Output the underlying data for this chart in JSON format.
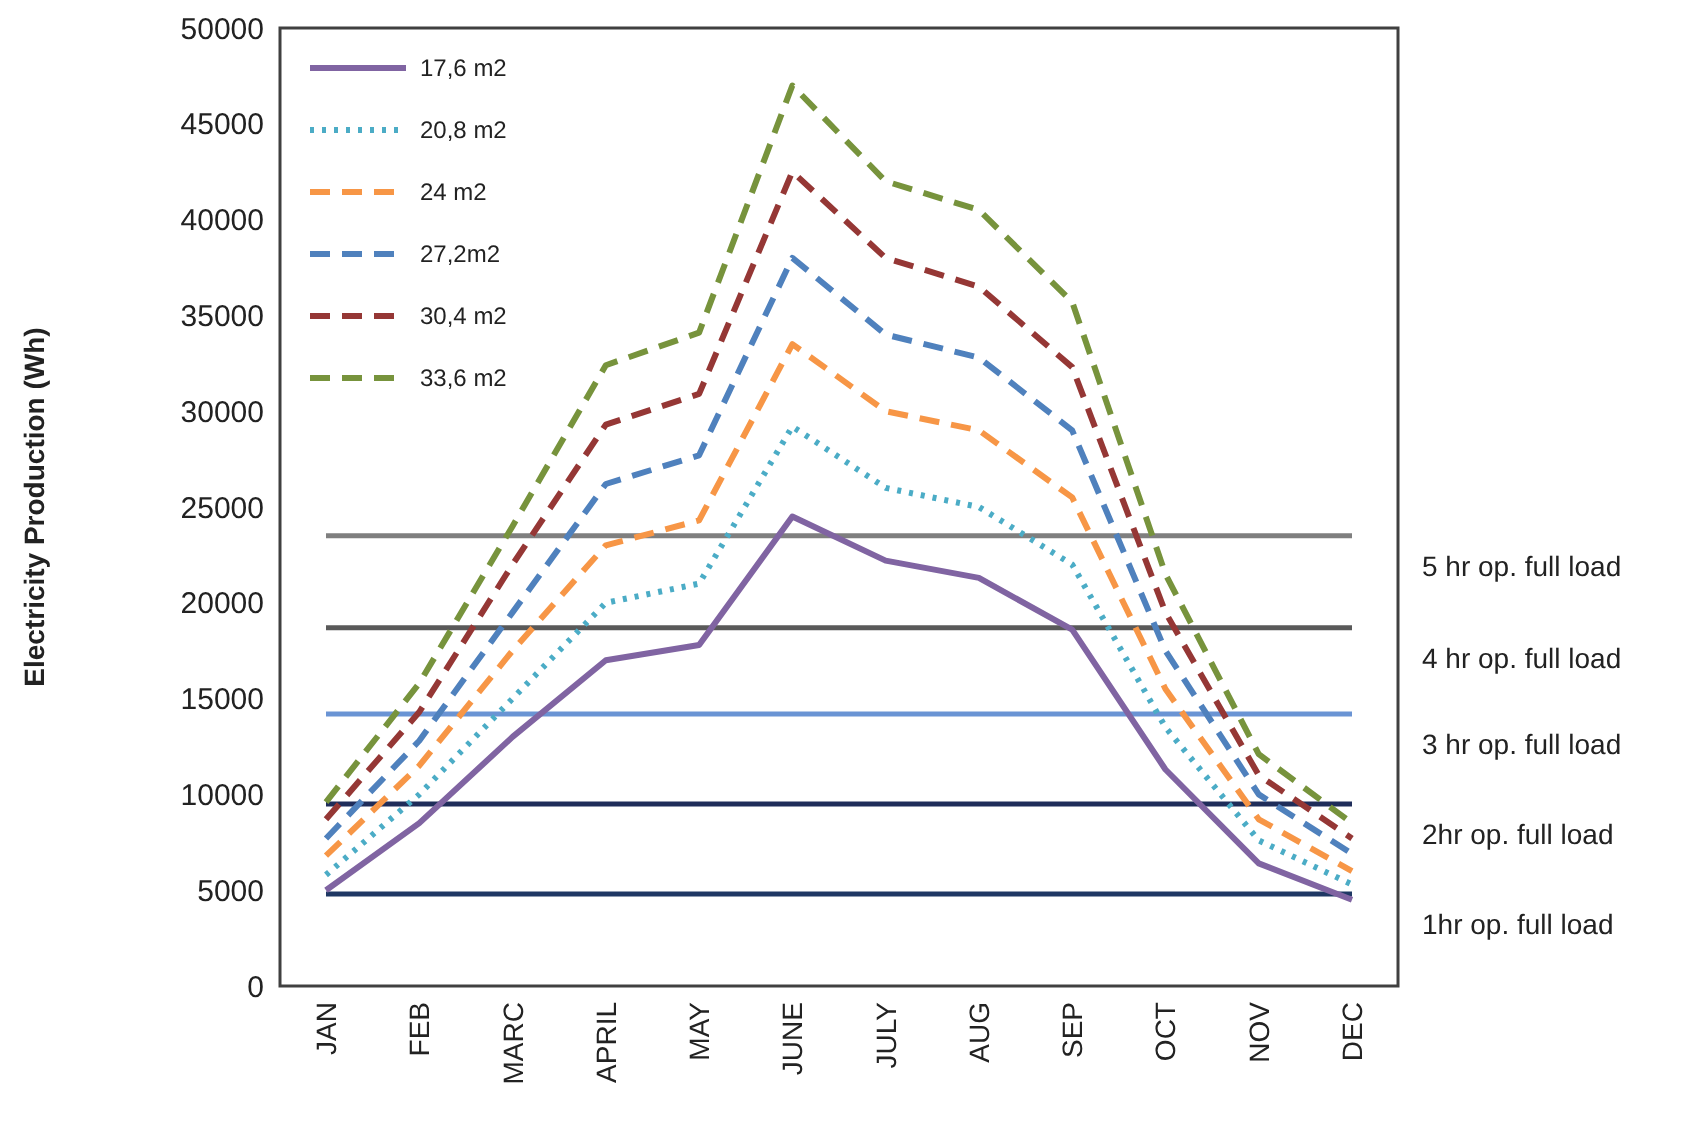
{
  "chart_data": {
    "type": "line",
    "ylabel": "Electricity Production (Wh)",
    "categories": [
      "JAN",
      "FEB",
      "MARC",
      "APRIL",
      "MAY",
      "JUNE",
      "JULY",
      "AUG",
      "SEP",
      "OCT",
      "NOV",
      "DEC"
    ],
    "series": [
      {
        "name": "17,6 m2",
        "color": "#8064a2",
        "line_style": "solid",
        "values": [
          5000,
          8500,
          13000,
          17000,
          17800,
          24500,
          22200,
          21300,
          18600,
          11300,
          6400,
          4500
        ]
      },
      {
        "name": "20,8 m2",
        "color": "#4bacc6",
        "line_style": "dotted",
        "values": [
          5800,
          10000,
          15000,
          20000,
          21000,
          29200,
          26000,
          25000,
          22000,
          13500,
          7600,
          5300
        ]
      },
      {
        "name": "24 m2",
        "color": "#f79646",
        "line_style": "dashed",
        "values": [
          6800,
          11500,
          17500,
          23000,
          24300,
          33500,
          30000,
          29000,
          25500,
          15500,
          8700,
          6000
        ]
      },
      {
        "name": "27,2m2",
        "color": "#4f81bd",
        "line_style": "dashed",
        "values": [
          7700,
          12800,
          19500,
          26200,
          27700,
          38000,
          34000,
          32800,
          29000,
          17500,
          10000,
          6900
        ]
      },
      {
        "name": "30,4 m2",
        "color": "#953735",
        "line_style": "dashed",
        "values": [
          8700,
          14300,
          22000,
          29300,
          30900,
          42500,
          38000,
          36500,
          32300,
          19500,
          11000,
          7700
        ]
      },
      {
        "name": "33,6 m2",
        "color": "#77933c",
        "line_style": "dashed",
        "values": [
          9600,
          15800,
          24000,
          32400,
          34100,
          47000,
          42000,
          40500,
          35700,
          21500,
          12100,
          8500
        ]
      }
    ],
    "ylim": [
      0,
      50000
    ],
    "yticks": [
      0,
      5000,
      10000,
      15000,
      20000,
      25000,
      30000,
      35000,
      40000,
      45000,
      50000
    ],
    "ref_lines": [
      {
        "axis": "y",
        "value": 23500,
        "label": "5 hr op. full load",
        "color": "#7f7f7f"
      },
      {
        "axis": "y",
        "value": 18700,
        "label": "4 hr op. full load",
        "color": "#595959"
      },
      {
        "axis": "y",
        "value": 14200,
        "label": "3 hr op. full load",
        "color": "#6a94d4"
      },
      {
        "axis": "y",
        "value": 9500,
        "label": "2hr op. full load",
        "color": "#1f2d5a"
      },
      {
        "axis": "y",
        "value": 4800,
        "label": "1hr op. full load",
        "color": "#1f3864"
      }
    ],
    "legend": "top left",
    "grid": false
  }
}
